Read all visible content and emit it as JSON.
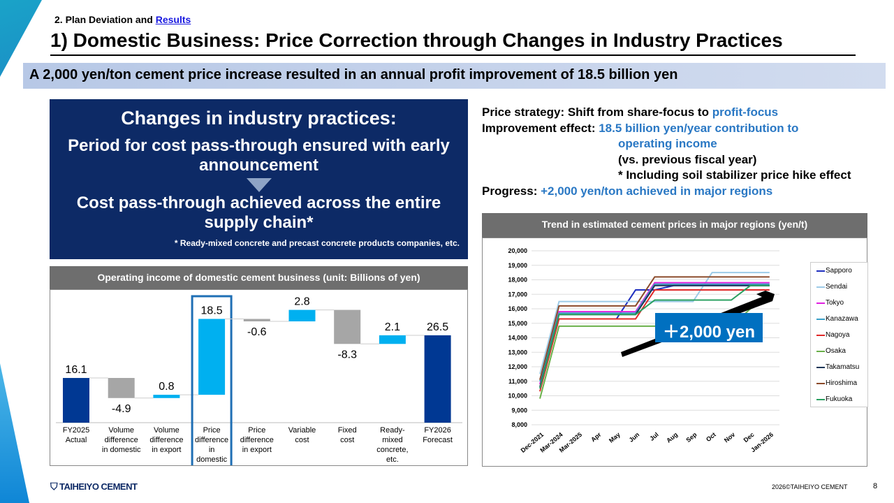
{
  "header": {
    "section_prefix": "2. Plan Deviation and ",
    "section_link": "Results",
    "title": "1) Domestic Business: Price Correction through Changes in Industry Practices"
  },
  "banner": "A 2,000 yen/ton cement price increase resulted in an annual profit improvement of 18.5 billion yen",
  "navy_box": {
    "heading": "Changes in industry practices:",
    "line1": "Period for cost pass-through ensured with early announcement",
    "line2": "Cost pass-through achieved across the entire supply chain*",
    "note": "* Ready-mixed concrete and precast concrete products companies, etc."
  },
  "strategy": {
    "l1_label": "Price strategy: Shift from share-focus to ",
    "l1_value": "profit-focus",
    "l2_label": "Improvement effect: ",
    "l2_value": "18.5 billion yen/year contribution to",
    "l3_value": "operating income",
    "l4": "(vs. previous fiscal year)",
    "l5": "* Including soil stabilizer price hike effect",
    "l6_label": "Progress: ",
    "l6_value": "+2,000 yen/ton achieved in major regions"
  },
  "colors": {
    "navy": "#0d2a66",
    "total_bar": "#003893",
    "positive_bar": "#00b0f0",
    "negative_bar": "#a6a6a6",
    "highlight": "#1f6fb5",
    "accent_text": "#2a78c4"
  },
  "chart_data": [
    {
      "type": "bar",
      "subtype": "waterfall",
      "title": "Operating income of domestic cement business (unit: Billions of yen)",
      "categories": [
        "FY2025 Actual",
        "Volume difference in domestic",
        "Volume difference in export",
        "Price difference in domestic",
        "Price difference in export",
        "Variable cost",
        "Fixed cost",
        "Ready-mixed concrete, etc.",
        "FY2026 Forecast"
      ],
      "values": [
        16.1,
        -4.9,
        0.8,
        18.5,
        -0.6,
        2.8,
        -8.3,
        2.1,
        26.5
      ],
      "labels": [
        "16.1",
        "-4.9",
        "0.8",
        "18.5",
        "-0.6",
        "2.8",
        "-8.3",
        "2.1",
        "26.5"
      ],
      "kinds": [
        "total",
        "delta",
        "delta",
        "delta",
        "delta",
        "delta",
        "delta",
        "delta",
        "total"
      ],
      "highlighted": "Price difference in domestic"
    },
    {
      "type": "line",
      "title": "Trend in estimated cement prices in major regions (yen/t)",
      "x": [
        "Dec-2021",
        "Mar-2024",
        "Mar-2025",
        "Apr",
        "May",
        "Jun",
        "Jul",
        "Aug",
        "Sep",
        "Oct",
        "Nov",
        "Dec",
        "Jan-2026"
      ],
      "ylim": [
        8000,
        20000
      ],
      "yticks": [
        "8,000",
        "9,000",
        "10,000",
        "11,000",
        "12,000",
        "13,000",
        "14,000",
        "15,000",
        "16,000",
        "17,000",
        "18,000",
        "19,000",
        "20,000"
      ],
      "grid": true,
      "legend": "right",
      "series": [
        {
          "name": "Sapporo",
          "color": "#1f2fbf",
          "values": [
            null,
            null,
            null,
            null,
            15300,
            17300,
            17300,
            17600,
            17600,
            17600,
            17600,
            17600,
            17600
          ]
        },
        {
          "name": "Sendai",
          "color": "#9dcbe8",
          "values": [
            11500,
            16500,
            16500,
            16500,
            16500,
            16500,
            16500,
            16500,
            16500,
            18500,
            18500,
            18500,
            18500
          ]
        },
        {
          "name": "Tokyo",
          "color": "#e020e0",
          "values": [
            10800,
            15800,
            15800,
            15800,
            15800,
            15800,
            17800,
            17800,
            17800,
            17800,
            17800,
            17800,
            17800
          ]
        },
        {
          "name": "Kanazawa",
          "color": "#3aa0c8",
          "values": [
            11000,
            15700,
            15700,
            15700,
            15700,
            15700,
            17700,
            17700,
            17700,
            17700,
            17700,
            17700,
            17700
          ]
        },
        {
          "name": "Nagoya",
          "color": "#e02828",
          "values": [
            10300,
            15300,
            15300,
            15300,
            15300,
            15300,
            17300,
            17300,
            17300,
            17300,
            17300,
            17300,
            17300
          ]
        },
        {
          "name": "Osaka",
          "color": "#6ab04a",
          "values": [
            9800,
            14800,
            14800,
            14800,
            14800,
            14800,
            14800,
            14800,
            14800,
            14800,
            14800,
            16000,
            16800
          ]
        },
        {
          "name": "Takamatsu",
          "color": "#1c3557",
          "values": [
            10600,
            15600,
            15600,
            15600,
            15600,
            15600,
            17600,
            17600,
            17600,
            17600,
            17600,
            17600,
            17600
          ]
        },
        {
          "name": "Hiroshima",
          "color": "#8b4a2a",
          "values": [
            11100,
            16200,
            16200,
            16200,
            16200,
            16200,
            18200,
            18200,
            18200,
            18200,
            18200,
            18200,
            18200
          ]
        },
        {
          "name": "Fukuoka",
          "color": "#2aa060",
          "values": [
            10500,
            15600,
            15600,
            15600,
            15600,
            15600,
            16600,
            16600,
            16600,
            16600,
            16600,
            17600,
            17600
          ]
        }
      ],
      "annotation": "＋2,000 yen"
    }
  ],
  "footer": {
    "logo": "TAIHEIYO CEMENT",
    "copyright": "2026©TAIHEIYO CEMENT",
    "page": "8"
  }
}
